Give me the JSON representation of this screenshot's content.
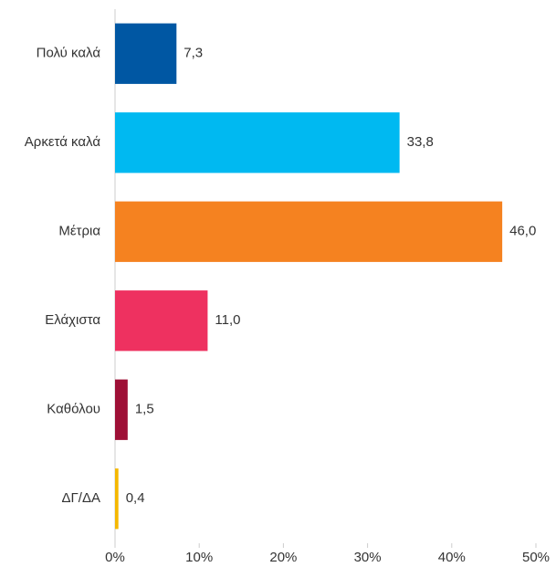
{
  "chart_data": {
    "type": "hbar",
    "categories": [
      "Πολύ καλά",
      "Αρκετά καλά",
      "Μέτρια",
      "Ελάχιστα",
      "Καθόλου",
      "ΔΓ/ΔΑ"
    ],
    "values": [
      7.3,
      33.8,
      46.0,
      11.0,
      1.5,
      0.4
    ],
    "value_labels": [
      "7,3",
      "33,8",
      "46,0",
      "11,0",
      "1,5",
      "0,4"
    ],
    "colors": [
      "#0057a3",
      "#00b9f1",
      "#f58220",
      "#ee3160",
      "#9e1036",
      "#f5b800"
    ],
    "xlim": [
      0,
      50
    ],
    "xticks": [
      {
        "value": 0,
        "label": "0%"
      },
      {
        "value": 10,
        "label": "10%"
      },
      {
        "value": 20,
        "label": "20%"
      },
      {
        "value": 30,
        "label": "30%"
      },
      {
        "value": 40,
        "label": "40%"
      },
      {
        "value": 50,
        "label": "50%"
      }
    ],
    "grid": false
  }
}
